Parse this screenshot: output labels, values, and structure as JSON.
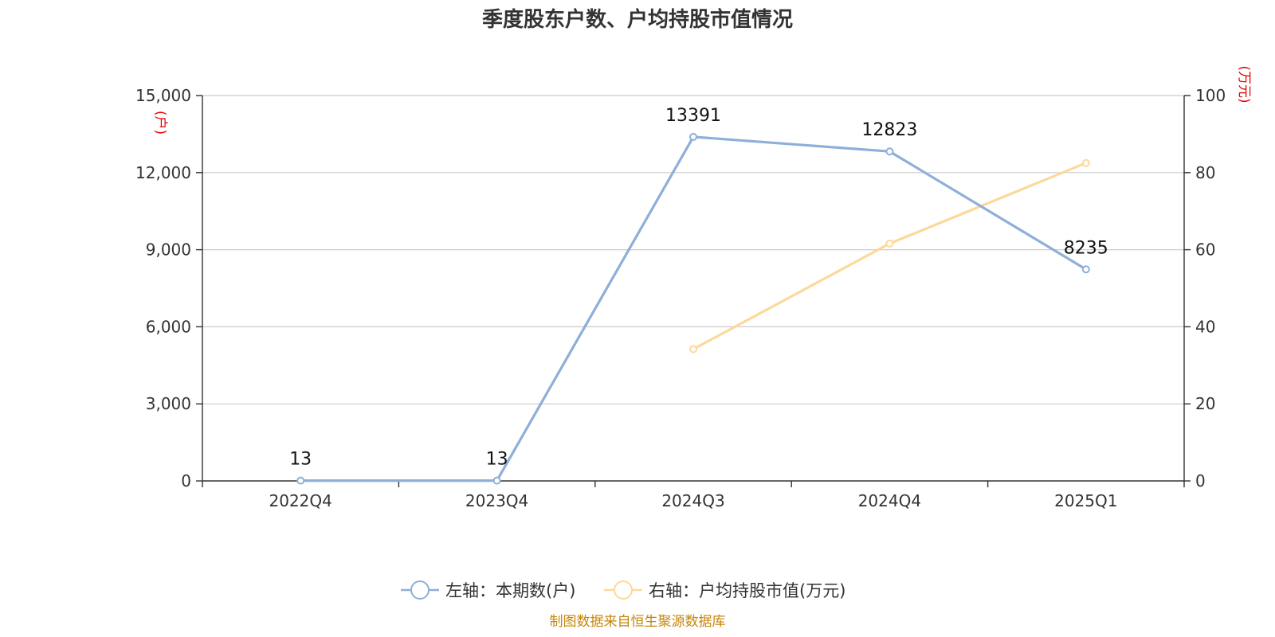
{
  "chart_data": {
    "type": "line",
    "title": "季度股东户数、户均持股市值情况",
    "categories": [
      "2022Q4",
      "2023Q4",
      "2024Q3",
      "2024Q4",
      "2025Q1"
    ],
    "left_axis": {
      "unit_label": "(户)",
      "ylim": [
        0,
        15000
      ],
      "ticks": [
        0,
        3000,
        6000,
        9000,
        12000,
        15000
      ],
      "tick_labels": [
        "0",
        "3,000",
        "6,000",
        "9,000",
        "12,000",
        "15,000"
      ]
    },
    "right_axis": {
      "unit_label": "(万元)",
      "ylim": [
        0,
        100
      ],
      "ticks": [
        0,
        20,
        40,
        60,
        80,
        100
      ],
      "tick_labels": [
        "0",
        "20",
        "40",
        "60",
        "80",
        "100"
      ]
    },
    "grid": true,
    "legend_position": "bottom",
    "series": [
      {
        "name": "左轴：本期数(户)",
        "axis": "left",
        "color": "#8eafd9",
        "values": [
          13,
          13,
          13391,
          12823,
          8235
        ],
        "labels": [
          "13",
          "13",
          "13391",
          "12823",
          "8235"
        ]
      },
      {
        "name": "右轴：户均持股市值(万元)",
        "axis": "right",
        "color": "#fcd99a",
        "values": [
          null,
          null,
          34.2,
          61.6,
          82.5
        ]
      }
    ],
    "source": "制图数据来自恒生聚源数据库"
  }
}
